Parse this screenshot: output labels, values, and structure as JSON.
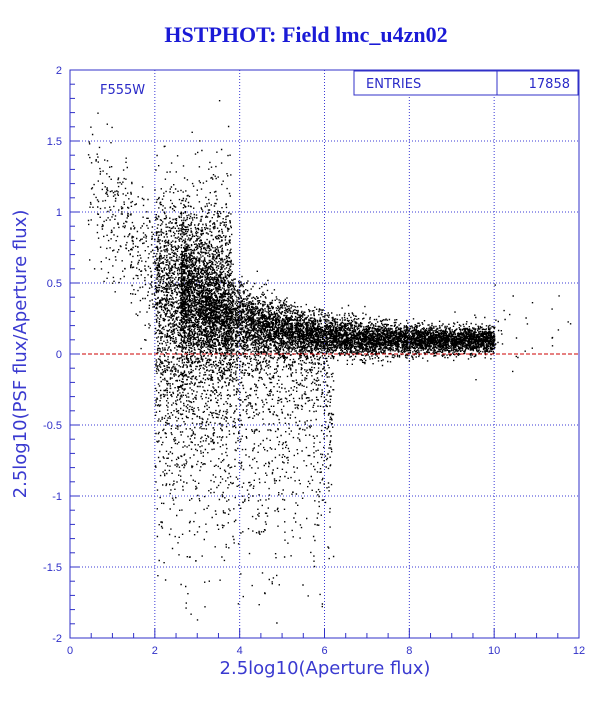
{
  "title": "HSTPHOT: Field lmc_u4zn02",
  "stats_box": {
    "label": "ENTRIES",
    "value": "17858"
  },
  "filter_label": "F555W",
  "colors": {
    "axis": "#3030c8",
    "grid": "#3a3ad6",
    "points": "#000000",
    "zero_line": "#cc0000",
    "title": "#1a1ad6"
  },
  "chart_data": {
    "type": "scatter",
    "title": "HSTPHOT: Field lmc_u4zn02",
    "xlabel": "2.5log10(Aperture flux)",
    "ylabel": "2.5log10(PSF flux/Aperture flux)",
    "xlim": [
      0,
      12
    ],
    "ylim": [
      -2,
      2
    ],
    "x_ticks": [
      "0",
      "2",
      "4",
      "6",
      "8",
      "10",
      "12"
    ],
    "y_ticks": [
      "-2",
      "-1.5",
      "-1",
      "-0.5",
      "0",
      "0.5",
      "1",
      "1.5",
      "2"
    ],
    "grid": true,
    "reference_line": {
      "y": 0,
      "style": "dashed",
      "color": "#cc0000"
    },
    "entries": 17858,
    "distribution": [
      {
        "x_range": [
          0.2,
          2.0
        ],
        "y_center": 1.15,
        "y_spread": 0.55,
        "density": "sparse"
      },
      {
        "x_range": [
          2.0,
          3.5
        ],
        "y_center": 0.45,
        "y_spread": 0.35,
        "density": "dense"
      },
      {
        "x_range": [
          3.5,
          6.0
        ],
        "y_center": 0.18,
        "y_spread": 0.14,
        "density": "very dense"
      },
      {
        "x_range": [
          6.0,
          10.0
        ],
        "y_center": 0.12,
        "y_spread": 0.06,
        "density": "dense"
      },
      {
        "x_range": [
          2.0,
          6.0
        ],
        "y_center": -0.6,
        "y_spread": 0.7,
        "density": "sparse tail"
      }
    ]
  }
}
